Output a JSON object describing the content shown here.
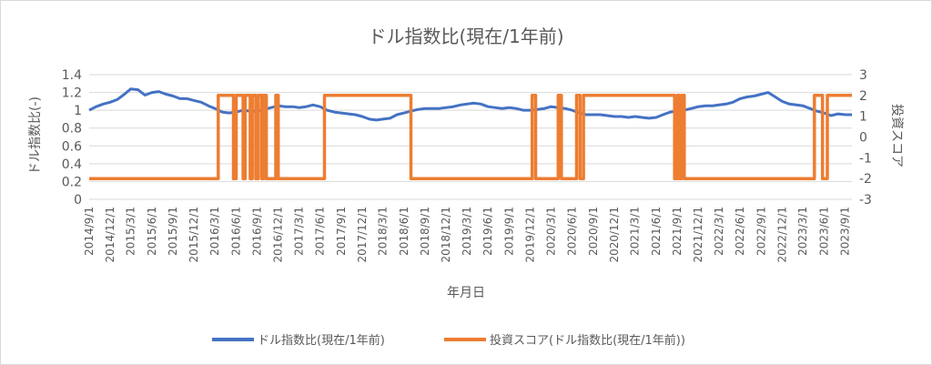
{
  "chart_data": {
    "type": "line",
    "title": "ドル指数比(現在/1年前)",
    "xlabel": "年月日",
    "ylabel_left": "ドル指数比(-)",
    "ylabel_right": "投資スコア",
    "ylim_left": [
      0,
      1.4
    ],
    "yticks_left": [
      "0",
      "0.2",
      "0.4",
      "0.6",
      "0.8",
      "1",
      "1.2",
      "1.4"
    ],
    "ylim_right": [
      -3,
      3
    ],
    "yticks_right": [
      "-3",
      "-2",
      "-1",
      "0",
      "1",
      "2",
      "3"
    ],
    "xlim": [
      "2014/9/1",
      "2023/9/30"
    ],
    "xticks": [
      "2014/9/1",
      "2014/12/1",
      "2015/3/1",
      "2015/6/1",
      "2015/9/1",
      "2015/12/1",
      "2016/3/1",
      "2016/6/1",
      "2016/9/1",
      "2016/12/1",
      "2017/3/1",
      "2017/6/1",
      "2017/9/1",
      "2017/12/1",
      "2018/3/1",
      "2018/6/1",
      "2018/9/1",
      "2018/12/1",
      "2019/3/1",
      "2019/6/1",
      "2019/9/1",
      "2019/12/1",
      "2020/3/1",
      "2020/6/1",
      "2020/9/1",
      "2020/12/1",
      "2021/3/1",
      "2021/6/1",
      "2021/9/1",
      "2021/12/1",
      "2022/3/1",
      "2022/6/1",
      "2022/9/1",
      "2022/12/1",
      "2023/3/1",
      "2023/6/1",
      "2023/9/1"
    ],
    "grid": "horizontal",
    "legend_position": "bottom",
    "series": [
      {
        "name": "ドル指数比(現在/1年前)",
        "axis": "left",
        "color": "#4472c4",
        "points": [
          [
            "2014/9/1",
            1.0
          ],
          [
            "2014/10/1",
            1.04
          ],
          [
            "2014/11/1",
            1.07
          ],
          [
            "2014/12/1",
            1.09
          ],
          [
            "2015/1/1",
            1.12
          ],
          [
            "2015/2/1",
            1.18
          ],
          [
            "2015/3/1",
            1.24
          ],
          [
            "2015/4/1",
            1.23
          ],
          [
            "2015/5/1",
            1.17
          ],
          [
            "2015/6/1",
            1.2
          ],
          [
            "2015/7/1",
            1.21
          ],
          [
            "2015/8/1",
            1.18
          ],
          [
            "2015/9/1",
            1.16
          ],
          [
            "2015/10/1",
            1.13
          ],
          [
            "2015/11/1",
            1.13
          ],
          [
            "2015/12/1",
            1.11
          ],
          [
            "2016/1/1",
            1.09
          ],
          [
            "2016/2/1",
            1.05
          ],
          [
            "2016/3/1",
            1.02
          ],
          [
            "2016/4/1",
            0.98
          ],
          [
            "2016/5/1",
            0.97
          ],
          [
            "2016/6/1",
            0.98
          ],
          [
            "2016/7/1",
            1.0
          ],
          [
            "2016/8/1",
            0.99
          ],
          [
            "2016/9/1",
            0.99
          ],
          [
            "2016/10/1",
            1.01
          ],
          [
            "2016/11/1",
            1.03
          ],
          [
            "2016/12/1",
            1.05
          ],
          [
            "2017/1/1",
            1.04
          ],
          [
            "2017/2/1",
            1.04
          ],
          [
            "2017/3/1",
            1.03
          ],
          [
            "2017/4/1",
            1.04
          ],
          [
            "2017/5/1",
            1.06
          ],
          [
            "2017/6/1",
            1.04
          ],
          [
            "2017/7/1",
            1.0
          ],
          [
            "2017/8/1",
            0.98
          ],
          [
            "2017/9/1",
            0.97
          ],
          [
            "2017/10/1",
            0.96
          ],
          [
            "2017/11/1",
            0.95
          ],
          [
            "2017/12/1",
            0.93
          ],
          [
            "2018/1/1",
            0.9
          ],
          [
            "2018/2/1",
            0.89
          ],
          [
            "2018/3/1",
            0.9
          ],
          [
            "2018/4/1",
            0.91
          ],
          [
            "2018/5/1",
            0.95
          ],
          [
            "2018/6/1",
            0.97
          ],
          [
            "2018/7/1",
            0.99
          ],
          [
            "2018/8/1",
            1.01
          ],
          [
            "2018/9/1",
            1.02
          ],
          [
            "2018/10/1",
            1.02
          ],
          [
            "2018/11/1",
            1.02
          ],
          [
            "2018/12/1",
            1.03
          ],
          [
            "2019/1/1",
            1.04
          ],
          [
            "2019/2/1",
            1.06
          ],
          [
            "2019/3/1",
            1.07
          ],
          [
            "2019/4/1",
            1.08
          ],
          [
            "2019/5/1",
            1.07
          ],
          [
            "2019/6/1",
            1.04
          ],
          [
            "2019/7/1",
            1.03
          ],
          [
            "2019/8/1",
            1.02
          ],
          [
            "2019/9/1",
            1.03
          ],
          [
            "2019/10/1",
            1.02
          ],
          [
            "2019/11/1",
            1.0
          ],
          [
            "2019/12/1",
            1.0
          ],
          [
            "2020/1/1",
            1.01
          ],
          [
            "2020/2/1",
            1.02
          ],
          [
            "2020/3/1",
            1.04
          ],
          [
            "2020/4/1",
            1.03
          ],
          [
            "2020/5/1",
            1.02
          ],
          [
            "2020/6/1",
            1.0
          ],
          [
            "2020/7/1",
            0.97
          ],
          [
            "2020/8/1",
            0.95
          ],
          [
            "2020/9/1",
            0.95
          ],
          [
            "2020/10/1",
            0.95
          ],
          [
            "2020/11/1",
            0.94
          ],
          [
            "2020/12/1",
            0.93
          ],
          [
            "2021/1/1",
            0.93
          ],
          [
            "2021/2/1",
            0.92
          ],
          [
            "2021/3/1",
            0.93
          ],
          [
            "2021/4/1",
            0.92
          ],
          [
            "2021/5/1",
            0.91
          ],
          [
            "2021/6/1",
            0.92
          ],
          [
            "2021/7/1",
            0.95
          ],
          [
            "2021/8/1",
            0.98
          ],
          [
            "2021/9/1",
            0.99
          ],
          [
            "2021/10/1",
            1.0
          ],
          [
            "2021/11/1",
            1.02
          ],
          [
            "2021/12/1",
            1.04
          ],
          [
            "2022/1/1",
            1.05
          ],
          [
            "2022/2/1",
            1.05
          ],
          [
            "2022/3/1",
            1.06
          ],
          [
            "2022/4/1",
            1.07
          ],
          [
            "2022/5/1",
            1.09
          ],
          [
            "2022/6/1",
            1.13
          ],
          [
            "2022/7/1",
            1.15
          ],
          [
            "2022/8/1",
            1.16
          ],
          [
            "2022/9/1",
            1.18
          ],
          [
            "2022/10/1",
            1.2
          ],
          [
            "2022/11/1",
            1.15
          ],
          [
            "2022/12/1",
            1.1
          ],
          [
            "2023/1/1",
            1.07
          ],
          [
            "2023/2/1",
            1.06
          ],
          [
            "2023/3/1",
            1.05
          ],
          [
            "2023/4/1",
            1.02
          ],
          [
            "2023/5/1",
            0.99
          ],
          [
            "2023/6/1",
            0.97
          ],
          [
            "2023/7/1",
            0.94
          ],
          [
            "2023/8/1",
            0.96
          ],
          [
            "2023/9/1",
            0.95
          ],
          [
            "2023/9/30",
            0.95
          ]
        ]
      },
      {
        "name": "投資スコア(ドル指数比(現在/1年前))",
        "axis": "right",
        "color": "#ed7d31",
        "step": true,
        "points": [
          [
            "2014/9/1",
            -2
          ],
          [
            "2016/3/15",
            2
          ],
          [
            "2016/5/20",
            -2
          ],
          [
            "2016/6/1",
            2
          ],
          [
            "2016/7/1",
            -2
          ],
          [
            "2016/7/10",
            2
          ],
          [
            "2016/8/1",
            -2
          ],
          [
            "2016/8/10",
            2
          ],
          [
            "2016/8/25",
            -2
          ],
          [
            "2016/9/5",
            2
          ],
          [
            "2016/9/20",
            -2
          ],
          [
            "2016/9/28",
            2
          ],
          [
            "2016/10/10",
            -2
          ],
          [
            "2016/11/20",
            2
          ],
          [
            "2016/12/1",
            -2
          ],
          [
            "2017/6/20",
            2
          ],
          [
            "2018/7/1",
            -2
          ],
          [
            "2019/12/10",
            2
          ],
          [
            "2019/12/25",
            -2
          ],
          [
            "2020/4/1",
            2
          ],
          [
            "2020/4/15",
            -2
          ],
          [
            "2020/6/20",
            2
          ],
          [
            "2020/7/5",
            -2
          ],
          [
            "2020/7/20",
            2
          ],
          [
            "2021/8/20",
            -2
          ],
          [
            "2021/9/1",
            2
          ],
          [
            "2021/9/10",
            -2
          ],
          [
            "2021/9/20",
            2
          ],
          [
            "2021/10/1",
            -2
          ],
          [
            "2023/4/20",
            2
          ],
          [
            "2023/5/25",
            -2
          ],
          [
            "2023/6/15",
            2
          ],
          [
            "2023/9/30",
            2
          ]
        ]
      }
    ]
  }
}
